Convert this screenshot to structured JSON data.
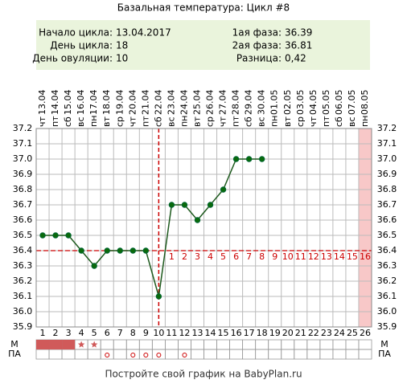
{
  "chart_data": {
    "type": "line",
    "title": "Базальная температура: Цикл #8",
    "info_left": [
      {
        "label": "Начало цикла:",
        "value": "13.04.2017"
      },
      {
        "label": "День цикла:",
        "value": "18"
      },
      {
        "label": "День овуляции:",
        "value": "10"
      }
    ],
    "info_right": [
      {
        "label": "1ая фаза:",
        "value": "36.39"
      },
      {
        "label": "2ая фаза:",
        "value": "36.81"
      },
      {
        "label": "Разница:",
        "value": "0,42"
      }
    ],
    "categories": [
      1,
      2,
      3,
      4,
      5,
      6,
      7,
      8,
      9,
      10,
      11,
      12,
      13,
      14,
      15,
      16,
      17,
      18,
      19,
      20,
      21,
      22,
      23,
      24,
      25,
      26
    ],
    "dates": [
      "13.04",
      "14.04",
      "15.04",
      "16.04",
      "17.04",
      "18.04",
      "19.04",
      "20.04",
      "21.04",
      "22.04",
      "23.04",
      "24.04",
      "25.04",
      "26.04",
      "27.04",
      "28.04",
      "29.04",
      "30.04",
      "01.05",
      "02.05",
      "03.05",
      "04.05",
      "05.05",
      "06.05",
      "07.05",
      "08.05"
    ],
    "weekdays": [
      "чт",
      "пт",
      "сб",
      "вс",
      "пн",
      "вт",
      "ср",
      "чт",
      "пт",
      "сб",
      "вс",
      "пн",
      "вт",
      "ср",
      "чт",
      "пт",
      "сб",
      "вс",
      "пн",
      "вт",
      "ср",
      "чт",
      "пт",
      "сб",
      "вс",
      "пн"
    ],
    "series": [
      {
        "color": "#1e5a1e",
        "values": [
          36.5,
          36.5,
          36.5,
          36.4,
          36.3,
          36.4,
          36.4,
          36.4,
          36.4,
          36.1,
          36.7,
          36.7,
          36.6,
          36.7,
          36.8,
          37.0,
          37.0,
          37.0,
          null,
          null,
          null,
          null,
          null,
          null,
          null,
          null
        ]
      }
    ],
    "ylim": [
      35.9,
      37.2
    ],
    "yticks": [
      35.9,
      {
        "value": 36.0,
        "label": "36.0"
      },
      36.1,
      36.2,
      36.3,
      36.4,
      36.5,
      36.6,
      36.7,
      36.8,
      36.9,
      {
        "value": 37.0,
        "label": "37.0"
      },
      37.1,
      37.2
    ],
    "grid": true,
    "cover_line": 36.4,
    "ovulation_day": 10,
    "phase_days": [
      1,
      2,
      3,
      4,
      5,
      6,
      7,
      8,
      9,
      10,
      11,
      12,
      13,
      14,
      15,
      16
    ],
    "shaded_days": [
      26
    ],
    "row_labels": [
      "М",
      "ПА"
    ],
    "menstruation_days": [
      1,
      2,
      3
    ],
    "star_days": [
      4,
      5
    ],
    "pa_days": [
      6,
      8,
      9,
      10,
      12
    ],
    "accent_color": "#cc0000",
    "footer": "Постройте свой график на BabyPlan.ru"
  }
}
